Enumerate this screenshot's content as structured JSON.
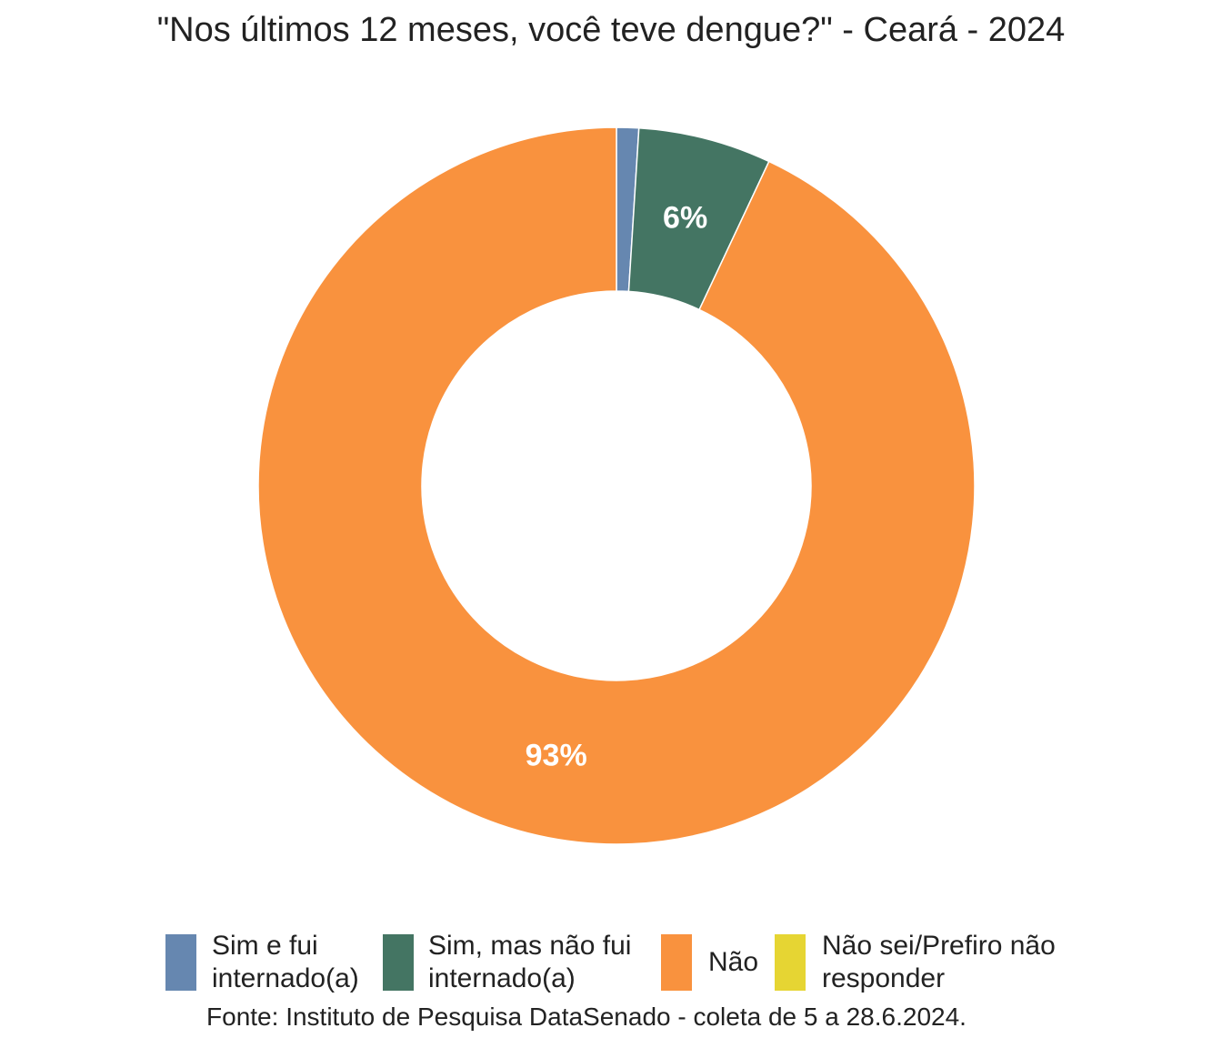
{
  "chart_data": {
    "type": "pie",
    "variant": "donut",
    "title": "\"Nos últimos 12 meses, você teve dengue?\" - Ceará - 2024",
    "caption": "Fonte: Instituto de Pesquisa DataSenado - coleta de 5 a 28.6.2024.",
    "legend_position": "bottom",
    "categories": [
      "Sim e fui internado(a)",
      "Sim, mas não fui internado(a)",
      "Não",
      "Não sei/Prefiro não responder"
    ],
    "values": [
      1,
      6,
      93,
      0
    ],
    "data_labels": [
      "",
      "6%",
      "93%",
      ""
    ],
    "colors": [
      "#6687b0",
      "#447563",
      "#f9923e",
      "#e6d533"
    ],
    "legend": [
      {
        "line1": "Sim e fui",
        "line2": "internado(a)"
      },
      {
        "line1": "Sim, mas não fui",
        "line2": "internado(a)"
      },
      {
        "line1": "Não",
        "line2": ""
      },
      {
        "line1": "Não sei/Prefiro não",
        "line2": "responder"
      }
    ]
  }
}
